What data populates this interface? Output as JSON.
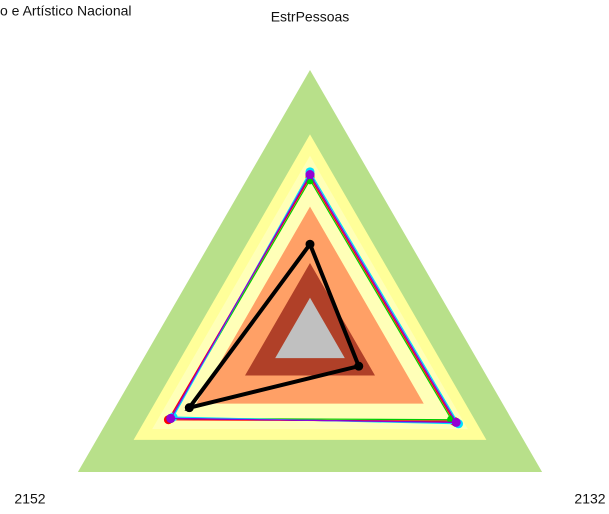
{
  "chart_data": {
    "type": "radar",
    "title": "o e Artístico Nacional",
    "categories": [
      "EstrPessoas",
      "2132",
      "2152"
    ],
    "rlim": [
      0,
      100
    ],
    "bands": [
      {
        "value": 100,
        "color": "#b8e08a"
      },
      {
        "value": 76,
        "color": "#ffff99"
      },
      {
        "value": 68,
        "color": "#ffffb8"
      },
      {
        "value": 49,
        "color": "#ffa066"
      },
      {
        "value": 28,
        "color": "#b04028"
      },
      {
        "value": 15,
        "color": "#c0c0c0"
      }
    ],
    "series": [
      {
        "color": "#ff0000",
        "values": [
          60,
          62,
          61
        ]
      },
      {
        "color": "#00cc00",
        "values": [
          59,
          61,
          60
        ]
      },
      {
        "color": "#0000ff",
        "values": [
          61,
          63,
          60
        ]
      },
      {
        "color": "#00e0ff",
        "values": [
          62,
          64,
          59
        ]
      },
      {
        "color": "#9400d3",
        "values": [
          61,
          63,
          60
        ]
      },
      {
        "color": "#000000",
        "values": [
          35,
          21,
          52
        ]
      }
    ]
  }
}
